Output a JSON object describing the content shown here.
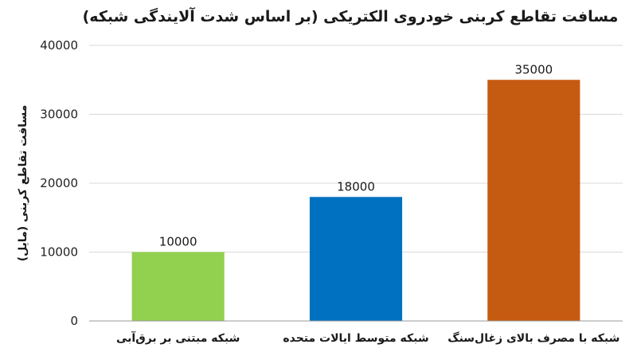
{
  "chart_data": {
    "type": "bar",
    "title": "مسافت تقاطع کربنی خودروی الکتریکی (بر اساس شدت آلایندگی شبکه)",
    "xlabel": "",
    "ylabel": "مسافت تقاطع کربنی (مایل)",
    "categories": [
      "شبکه مبتنی بر برق‌آبی",
      "شبکه متوسط ایالات متحده",
      "شبکه با مصرف بالای زغال‌سنگ"
    ],
    "values": [
      10000,
      18000,
      35000
    ],
    "colors": [
      "#92d050",
      "#0070c0",
      "#c55a11"
    ],
    "ylim": [
      0,
      40000
    ],
    "yticks": [
      0,
      10000,
      20000,
      30000,
      40000
    ],
    "data_labels": [
      "10000",
      "18000",
      "35000"
    ],
    "grid": true,
    "legend": "none"
  }
}
